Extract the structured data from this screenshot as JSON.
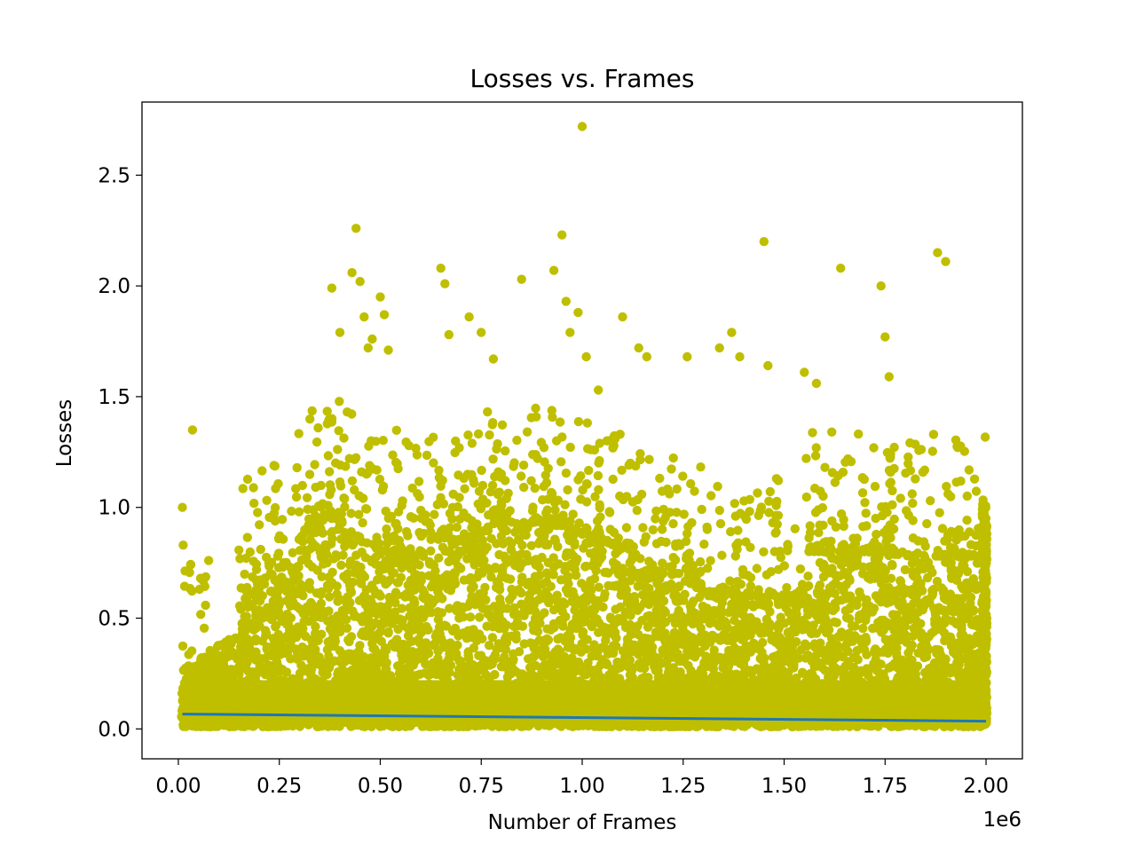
{
  "chart_data": {
    "type": "scatter",
    "title": "Losses vs. Frames",
    "xlabel": "Number of Frames",
    "ylabel": "Losses",
    "x_offset_label": "1e6",
    "xlim": [
      -90000,
      2090000
    ],
    "ylim": [
      -0.135,
      2.83
    ],
    "x_ticks": [
      0,
      250000,
      500000,
      750000,
      1000000,
      1250000,
      1500000,
      1750000,
      2000000
    ],
    "x_tick_labels": [
      "0.00",
      "0.25",
      "0.50",
      "0.75",
      "1.00",
      "1.25",
      "1.50",
      "1.75",
      "2.00"
    ],
    "y_ticks": [
      0.0,
      0.5,
      1.0,
      1.5,
      2.0,
      2.5
    ],
    "y_tick_labels": [
      "0.0",
      "0.5",
      "1.0",
      "1.5",
      "2.0",
      "2.5"
    ],
    "grid": false,
    "legend": "none",
    "colors": {
      "points": "#bfbf00",
      "trend": "#1f77b4"
    },
    "series": [
      {
        "kind": "points",
        "note": "dense cloud of training-loss samples; representative outliers listed",
        "x": [
          10000,
          12000,
          35000,
          55000,
          75000,
          380000,
          400000,
          430000,
          440000,
          450000,
          460000,
          470000,
          480000,
          500000,
          510000,
          520000,
          650000,
          660000,
          670000,
          720000,
          750000,
          780000,
          850000,
          930000,
          950000,
          960000,
          970000,
          990000,
          1000000,
          1010000,
          1040000,
          1100000,
          1140000,
          1160000,
          1260000,
          1340000,
          1370000,
          1390000,
          1450000,
          1460000,
          1550000,
          1580000,
          1640000,
          1740000,
          1750000,
          1760000,
          1870000,
          1880000,
          1900000,
          1930000
        ],
        "y": [
          1.0,
          0.83,
          1.35,
          0.68,
          0.76,
          1.99,
          1.79,
          2.06,
          2.26,
          2.02,
          1.86,
          1.72,
          1.76,
          1.95,
          1.87,
          1.71,
          2.08,
          2.01,
          1.78,
          1.86,
          1.79,
          1.67,
          2.03,
          2.07,
          2.23,
          1.93,
          1.79,
          1.88,
          2.72,
          1.68,
          1.53,
          1.86,
          1.72,
          1.68,
          1.68,
          1.72,
          1.79,
          1.68,
          2.2,
          1.64,
          1.61,
          1.56,
          2.08,
          2.0,
          1.77,
          1.59,
          1.33,
          2.15,
          2.11,
          1.27
        ]
      },
      {
        "kind": "trend_line",
        "x": [
          10000,
          2000000
        ],
        "y": [
          0.067,
          0.035
        ]
      }
    ]
  }
}
